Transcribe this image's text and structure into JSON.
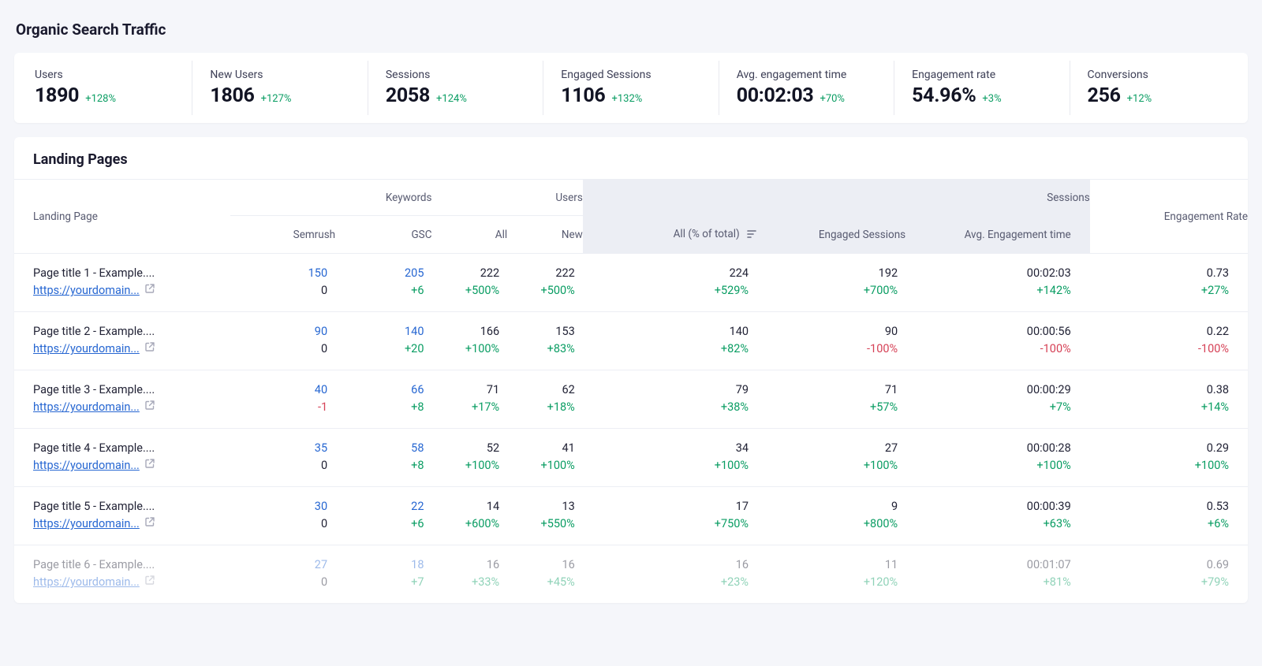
{
  "colors": {
    "background": "#f5f6fa",
    "card": "#ffffff",
    "border": "#eceef4",
    "textPrimary": "#1a1a2e",
    "textSecondary": "#575a70",
    "link": "#2767d2",
    "positive": "#0a9d63",
    "negative": "#d64257",
    "sessionsBg": "#eceef4",
    "iconMuted": "#a7a9b9"
  },
  "page": {
    "title": "Organic Search Traffic"
  },
  "metrics": [
    {
      "label": "Users",
      "value": "1890",
      "delta": "+128%"
    },
    {
      "label": "New Users",
      "value": "1806",
      "delta": "+127%"
    },
    {
      "label": "Sessions",
      "value": "2058",
      "delta": "+124%"
    },
    {
      "label": "Engaged Sessions",
      "value": "1106",
      "delta": "+132%"
    },
    {
      "label": "Avg. engagement time",
      "value": "00:02:03",
      "delta": "+70%"
    },
    {
      "label": "Engagement rate",
      "value": "54.96%",
      "delta": "+3%"
    },
    {
      "label": "Conversions",
      "value": "256",
      "delta": "+12%"
    }
  ],
  "tableSection": {
    "title": "Landing Pages",
    "headers": {
      "landingPage": "Landing Page",
      "keywords": "Keywords",
      "users": "Users",
      "sessions": "Sessions",
      "engagementRate": "Engagement Rate",
      "semrush": "Semrush",
      "gsc": "GSC",
      "usersAll": "All",
      "usersNew": "New",
      "sessionsAll": "All (% of total)",
      "engagedSessions": "Engaged Sessions",
      "avgEngagement": "Avg. Engagement time"
    }
  },
  "rows": [
    {
      "title": "Page title 1 - Example....",
      "url": "https://yourdomain...",
      "semrush": {
        "top": "150",
        "bot": "0",
        "botClass": ""
      },
      "gsc": {
        "top": "205",
        "bot": "+6",
        "botClass": "pos"
      },
      "usersAll": {
        "top": "222",
        "bot": "+500%",
        "botClass": "pos"
      },
      "usersNew": {
        "top": "222",
        "bot": "+500%",
        "botClass": "pos"
      },
      "sessAll": {
        "top": "224",
        "bot": "+529%",
        "botClass": "pos"
      },
      "engSess": {
        "top": "192",
        "bot": "+700%",
        "botClass": "pos"
      },
      "avgEng": {
        "top": "00:02:03",
        "bot": "+142%",
        "botClass": "pos"
      },
      "rate": {
        "top": "0.73",
        "bot": "+27%",
        "botClass": "pos"
      }
    },
    {
      "title": "Page title 2 - Example....",
      "url": "https://yourdomain...",
      "semrush": {
        "top": "90",
        "bot": "0",
        "botClass": ""
      },
      "gsc": {
        "top": "140",
        "bot": "+20",
        "botClass": "pos"
      },
      "usersAll": {
        "top": "166",
        "bot": "+100%",
        "botClass": "pos"
      },
      "usersNew": {
        "top": "153",
        "bot": "+83%",
        "botClass": "pos"
      },
      "sessAll": {
        "top": "140",
        "bot": "+82%",
        "botClass": "pos"
      },
      "engSess": {
        "top": "90",
        "bot": "-100%",
        "botClass": "neg"
      },
      "avgEng": {
        "top": "00:00:56",
        "bot": "-100%",
        "botClass": "neg"
      },
      "rate": {
        "top": "0.22",
        "bot": "-100%",
        "botClass": "neg"
      }
    },
    {
      "title": "Page title 3 - Example....",
      "url": "https://yourdomain...",
      "semrush": {
        "top": "40",
        "bot": "-1",
        "botClass": "neg"
      },
      "gsc": {
        "top": "66",
        "bot": "+8",
        "botClass": "pos"
      },
      "usersAll": {
        "top": "71",
        "bot": "+17%",
        "botClass": "pos"
      },
      "usersNew": {
        "top": "62",
        "bot": "+18%",
        "botClass": "pos"
      },
      "sessAll": {
        "top": "79",
        "bot": "+38%",
        "botClass": "pos"
      },
      "engSess": {
        "top": "71",
        "bot": "+57%",
        "botClass": "pos"
      },
      "avgEng": {
        "top": "00:00:29",
        "bot": "+7%",
        "botClass": "pos"
      },
      "rate": {
        "top": "0.38",
        "bot": "+14%",
        "botClass": "pos"
      }
    },
    {
      "title": "Page title 4 - Example....",
      "url": "https://yourdomain...",
      "semrush": {
        "top": "35",
        "bot": "0",
        "botClass": ""
      },
      "gsc": {
        "top": "58",
        "bot": "+8",
        "botClass": "pos"
      },
      "usersAll": {
        "top": "52",
        "bot": "+100%",
        "botClass": "pos"
      },
      "usersNew": {
        "top": "41",
        "bot": "+100%",
        "botClass": "pos"
      },
      "sessAll": {
        "top": "34",
        "bot": "+100%",
        "botClass": "pos"
      },
      "engSess": {
        "top": "27",
        "bot": "+100%",
        "botClass": "pos"
      },
      "avgEng": {
        "top": "00:00:28",
        "bot": "+100%",
        "botClass": "pos"
      },
      "rate": {
        "top": "0.29",
        "bot": "+100%",
        "botClass": "pos"
      }
    },
    {
      "title": "Page title 5 - Example....",
      "url": "https://yourdomain...",
      "semrush": {
        "top": "30",
        "bot": "0",
        "botClass": ""
      },
      "gsc": {
        "top": "22",
        "bot": "+6",
        "botClass": "pos"
      },
      "usersAll": {
        "top": "14",
        "bot": "+600%",
        "botClass": "pos"
      },
      "usersNew": {
        "top": "13",
        "bot": "+550%",
        "botClass": "pos"
      },
      "sessAll": {
        "top": "17",
        "bot": "+750%",
        "botClass": "pos"
      },
      "engSess": {
        "top": "9",
        "bot": "+800%",
        "botClass": "pos"
      },
      "avgEng": {
        "top": "00:00:39",
        "bot": "+63%",
        "botClass": "pos"
      },
      "rate": {
        "top": "0.53",
        "bot": "+6%",
        "botClass": "pos"
      }
    },
    {
      "title": "Page title 6 - Example....",
      "url": "https://yourdomain...",
      "semrush": {
        "top": "27",
        "bot": "0",
        "botClass": ""
      },
      "gsc": {
        "top": "18",
        "bot": "+7",
        "botClass": "pos"
      },
      "usersAll": {
        "top": "16",
        "bot": "+33%",
        "botClass": "pos"
      },
      "usersNew": {
        "top": "16",
        "bot": "+45%",
        "botClass": "pos"
      },
      "sessAll": {
        "top": "16",
        "bot": "+23%",
        "botClass": "pos"
      },
      "engSess": {
        "top": "11",
        "bot": "+120%",
        "botClass": "pos"
      },
      "avgEng": {
        "top": "00:01:07",
        "bot": "+81%",
        "botClass": "pos"
      },
      "rate": {
        "top": "0.69",
        "bot": "+79%",
        "botClass": "pos"
      }
    }
  ]
}
